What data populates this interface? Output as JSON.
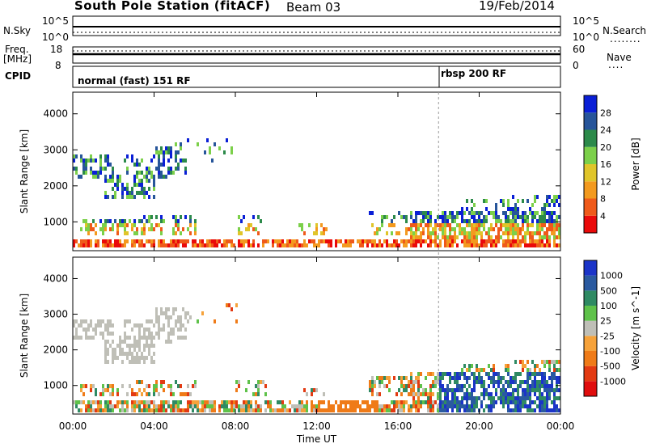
{
  "header": {
    "title": "South Pole Station (fitACF)",
    "beam": "Beam 03",
    "date": "19/Feb/2014"
  },
  "params": {
    "nsky_label": "N.Sky",
    "nsearch_label": "N.Search",
    "nsearch_dots": "........",
    "left_scale_top": "10^5",
    "left_scale_bottom": "10^0",
    "right_scale_top": "10^5",
    "right_scale_bottom": "10^0",
    "freq_label_1": "Freq.",
    "freq_label_2": "[MHz]",
    "freq_top": "18",
    "freq_bottom": "8",
    "nave_label": "Nave",
    "nave_dots": "....",
    "nave_top": "60",
    "nave_bottom": "0",
    "cpid_label": "CPID",
    "cpid_1": "normal (fast) 151 RF",
    "cpid_2": "rbsp 200 RF"
  },
  "chart_data": [
    {
      "type": "heatmap",
      "ylabel": "Slant Range [km]",
      "y_ticks": [
        "4000",
        "3000",
        "2000",
        "1000"
      ],
      "ylim": [
        200,
        4600
      ],
      "x_ticks": [
        "00:00",
        "04:00",
        "08:00",
        "12:00",
        "16:00",
        "20:00",
        "00:00"
      ],
      "colorbar_label": "Power [dB]",
      "colorbar_ticks": [
        "28",
        "24",
        "20",
        "16",
        "12",
        "8",
        "4"
      ],
      "colors": [
        "#0a1fd6",
        "#27559a",
        "#2c8a4a",
        "#7cd04a",
        "#e0c52a",
        "#f39a1f",
        "#ef5a1a",
        "#ea0a0a"
      ]
    },
    {
      "type": "heatmap",
      "ylabel": "Slant Range [km]",
      "y_ticks": [
        "4000",
        "3000",
        "2000",
        "1000"
      ],
      "ylim": [
        200,
        4600
      ],
      "x_ticks": [
        "00:00",
        "04:00",
        "08:00",
        "12:00",
        "16:00",
        "20:00",
        "00:00"
      ],
      "xlabel": "Time UT",
      "colorbar_label": "Velocity [m s^-1]",
      "colorbar_ticks": [
        "1000",
        "500",
        "100",
        "25",
        "-25",
        "-100",
        "-500",
        "-1000"
      ],
      "colors": [
        "#1b34c8",
        "#2a5aa0",
        "#2f8a63",
        "#5fc24a",
        "#bfbfb7",
        "#f6a23a",
        "#ef7b18",
        "#e33a12",
        "#e00d0d"
      ]
    }
  ]
}
